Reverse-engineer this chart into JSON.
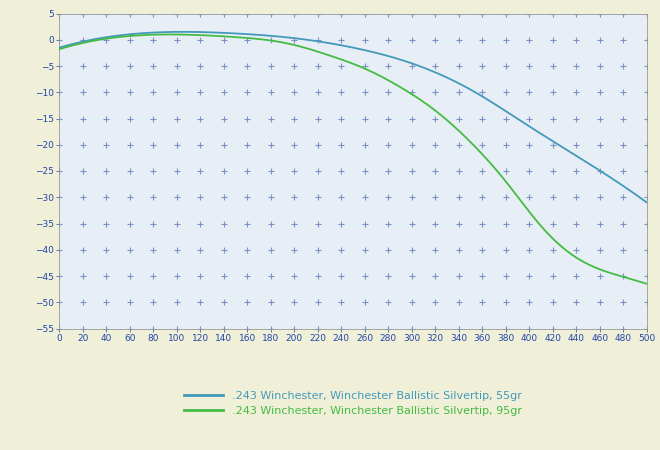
{
  "bg_color": "#f0f0d8",
  "plot_bg_color": "#e8eef5",
  "grid_color": "#3355aa",
  "xmin": 0,
  "xmax": 500,
  "ymin": -55,
  "ymax": 5,
  "yticks": [
    5,
    0,
    -5,
    -10,
    -15,
    -20,
    -25,
    -30,
    -35,
    -40,
    -45,
    -50,
    -55
  ],
  "xticks": [
    0,
    20,
    40,
    60,
    80,
    100,
    120,
    140,
    160,
    180,
    200,
    220,
    240,
    260,
    280,
    300,
    320,
    340,
    360,
    380,
    400,
    420,
    440,
    460,
    480,
    500
  ],
  "line1_color": "#4499bb",
  "line2_color": "#44bb44",
  "line1_label": ".243 Winchester, Winchester Ballistic Silvertip, 55gr",
  "line2_label": ".243 Winchester, Winchester Ballistic Silvertip, 95gr",
  "tick_color": "#2244aa",
  "spine_color": "#999999",
  "line1_knots_x": [
    0,
    50,
    100,
    150,
    200,
    250,
    300,
    350,
    400,
    450,
    500
  ],
  "line1_knots_y": [
    -1.5,
    0.8,
    1.5,
    1.2,
    0.3,
    -1.5,
    -4.5,
    -9.5,
    -16.5,
    -23.5,
    -31.0
  ],
  "line2_knots_x": [
    0,
    50,
    100,
    150,
    175,
    200,
    230,
    260,
    290,
    320,
    350,
    380,
    410,
    440,
    470,
    500
  ],
  "line2_knots_y": [
    -1.8,
    0.5,
    1.0,
    0.5,
    0.0,
    -1.0,
    -3.0,
    -5.5,
    -9.0,
    -13.5,
    -19.5,
    -27.0,
    -35.5,
    -41.5,
    -44.5,
    -46.5
  ]
}
